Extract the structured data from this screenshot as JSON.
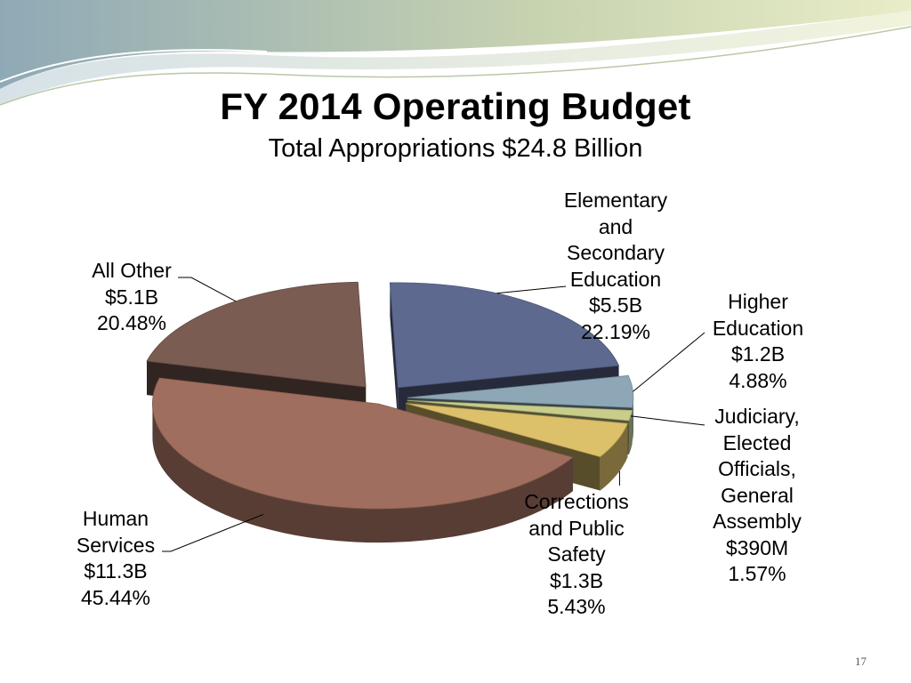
{
  "title": "FY 2014 Operating Budget",
  "subtitle": "Total Appropriations $24.8 Billion",
  "page_number": "17",
  "chart_data": {
    "type": "pie",
    "title": "FY 2014 Operating Budget",
    "subtitle": "Total Appropriations $24.8 Billion",
    "style": "3d-exploded",
    "slices": [
      {
        "name": "Elementary and Secondary Education",
        "label_lines": [
          "Elementary",
          "and",
          "Secondary",
          "Education"
        ],
        "amount_label": "$5.5B",
        "amount_billions": 5.5,
        "percent": 22.19,
        "percent_label": "22.19%",
        "color": "#5E6990"
      },
      {
        "name": "Higher Education",
        "label_lines": [
          "Higher",
          "Education"
        ],
        "amount_label": "$1.2B",
        "amount_billions": 1.2,
        "percent": 4.88,
        "percent_label": "4.88%",
        "color": "#8EA7B7"
      },
      {
        "name": "Judiciary, Elected Officials, General Assembly",
        "label_lines": [
          "Judiciary,",
          "Elected",
          "Officials,",
          "General",
          "Assembly"
        ],
        "amount_label": "$390M",
        "amount_billions": 0.39,
        "percent": 1.57,
        "percent_label": "1.57%",
        "color": "#C9CD8A"
      },
      {
        "name": "Corrections and Public Safety",
        "label_lines": [
          "Corrections",
          "and Public",
          "Safety"
        ],
        "amount_label": "$1.3B",
        "amount_billions": 1.3,
        "percent": 5.43,
        "percent_label": "5.43%",
        "color": "#DDC06A"
      },
      {
        "name": "Human Services",
        "label_lines": [
          "Human",
          "Services"
        ],
        "amount_label": "$11.3B",
        "amount_billions": 11.3,
        "percent": 45.44,
        "percent_label": "45.44%",
        "color": "#A06E5E"
      },
      {
        "name": "All Other",
        "label_lines": [
          "All Other"
        ],
        "amount_label": "$5.1B",
        "amount_billions": 5.1,
        "percent": 20.48,
        "percent_label": "20.48%",
        "color": "#7A5C52"
      }
    ]
  }
}
